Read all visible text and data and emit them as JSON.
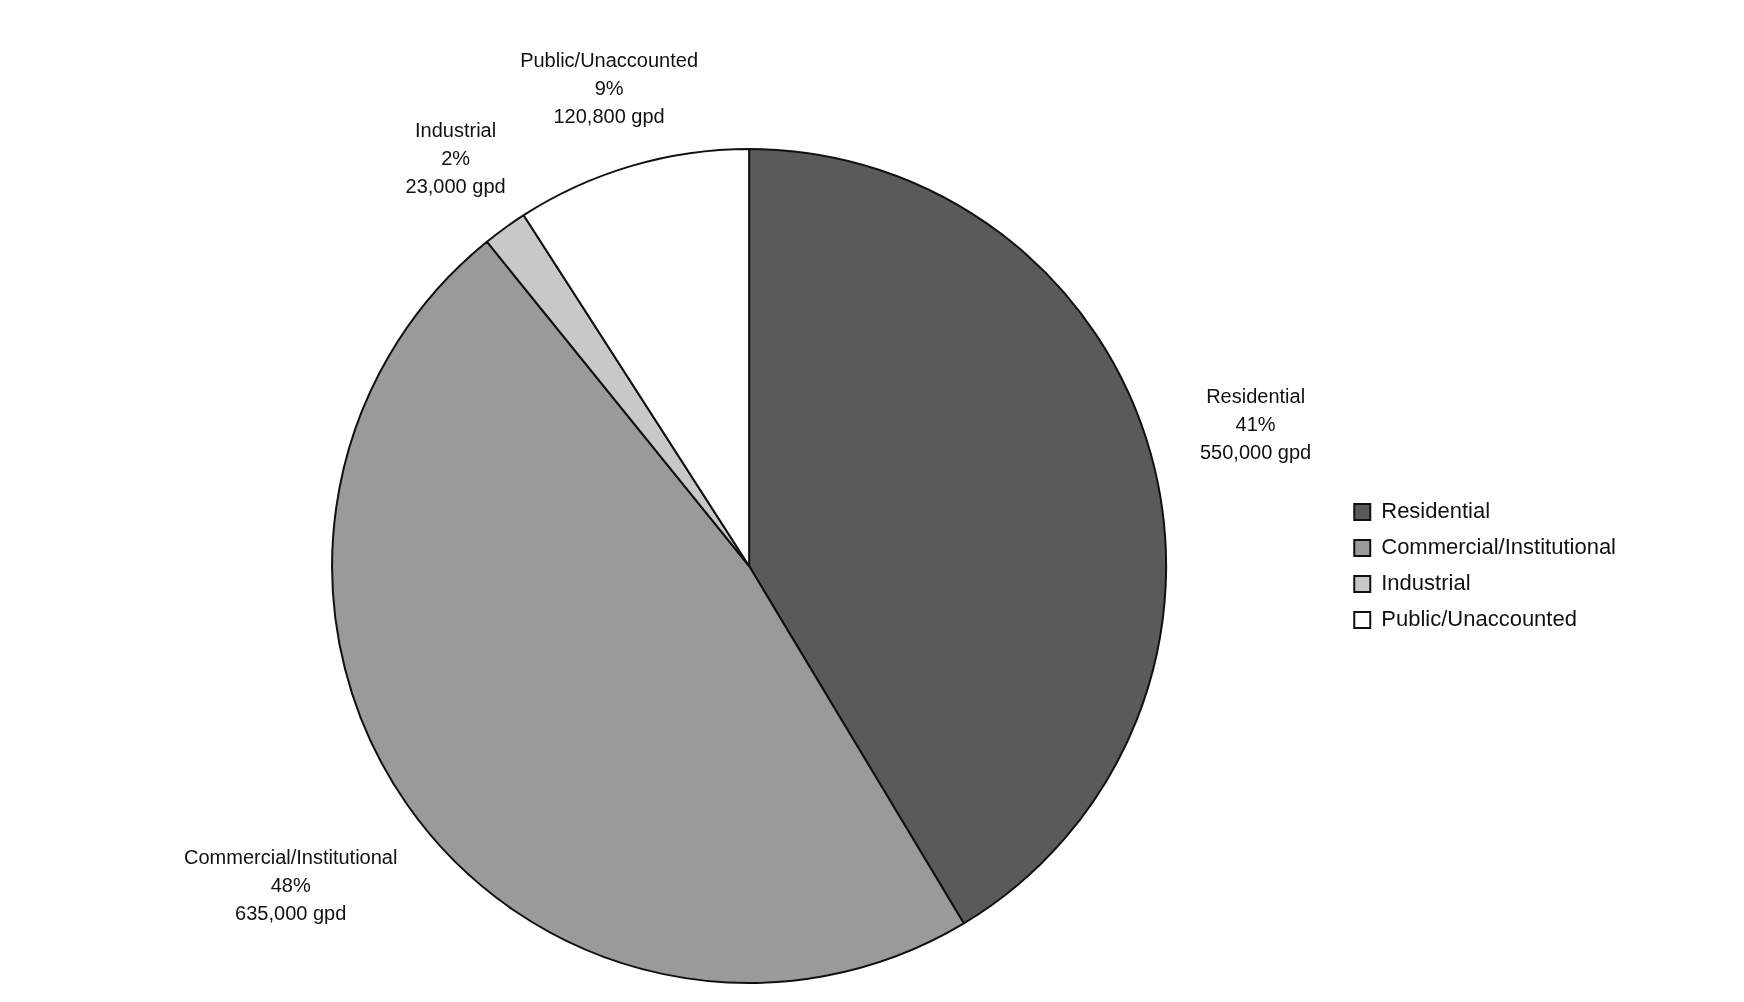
{
  "chart_data": {
    "type": "pie",
    "categories": [
      "Residential",
      "Commercial/Institutional",
      "Industrial",
      "Public/Unaccounted"
    ],
    "values": [
      550000,
      635000,
      23000,
      120800
    ],
    "value_labels": [
      "41%\n550,000 gpd",
      "48%\n635,000 gpd",
      "2%\n23,000 gpd",
      "9%\n120,800 gpd"
    ],
    "colors": [
      "#5a5a5a",
      "#9a9a9a",
      "#c8c8c8",
      "#ffffff"
    ],
    "legend": "right"
  }
}
